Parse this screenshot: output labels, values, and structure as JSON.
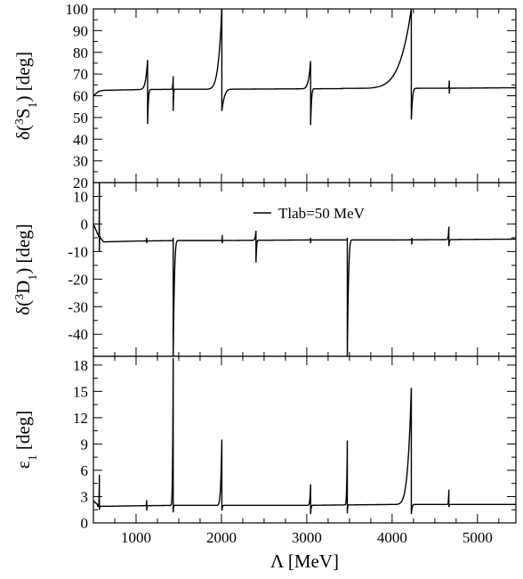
{
  "chart_data": {
    "type": "line",
    "shared_x": {
      "label": "Λ [MeV]",
      "range": [
        500,
        5450
      ],
      "major_ticks": [
        1000,
        2000,
        3000,
        4000,
        5000
      ],
      "tick_labels": [
        "1000",
        "2000",
        "3000",
        "4000",
        "5000"
      ]
    },
    "legend": {
      "label": "Tlab=50 MeV",
      "placement": "top-center of middle panel"
    },
    "panels": [
      {
        "id": "3S1",
        "ylabel": "δ(³S₁) [deg]",
        "ylabel_parts": {
          "pre": "δ(",
          "sup": "3",
          "main": "S",
          "sub": "1",
          "post": ") [deg]"
        },
        "ylim": [
          20,
          100
        ],
        "y_ticks": [
          20,
          30,
          40,
          50,
          60,
          70,
          80,
          90,
          100
        ],
        "y_tick_labels": [
          "20",
          "30",
          "40",
          "50",
          "60",
          "70",
          "80",
          "90",
          "100"
        ],
        "show_top_tick_label": true,
        "baseline_points": [
          [
            500,
            60
          ],
          [
            560,
            62
          ],
          [
            620,
            62.5
          ],
          [
            1000,
            62.8
          ],
          [
            1500,
            63
          ],
          [
            2000,
            63
          ],
          [
            3000,
            63.2
          ],
          [
            4000,
            63.4
          ],
          [
            4800,
            63.5
          ],
          [
            5450,
            63.7
          ]
        ],
        "resonances": [
          {
            "x": 1135,
            "up": 76.5,
            "down": 47,
            "rise": 140,
            "drop": 40
          },
          {
            "x": 1435,
            "up": 69,
            "down": 53,
            "rise": 30,
            "drop": 20
          },
          {
            "x": 2005,
            "up": 100,
            "down": 53,
            "rise": 250,
            "drop": 130
          },
          {
            "x": 3045,
            "up": 76,
            "down": 46.5,
            "rise": 150,
            "drop": 45
          },
          {
            "x": 4225,
            "up": 100,
            "down": 49,
            "rise": 800,
            "drop": 60
          },
          {
            "x": 4670,
            "up": 67,
            "down": 61,
            "rise": 20,
            "drop": 15
          }
        ]
      },
      {
        "id": "3D1",
        "ylabel": "δ(³D₁) [deg]",
        "ylabel_parts": {
          "pre": "δ(",
          "sup": "3",
          "main": "D",
          "sub": "1",
          "post": ") [deg]"
        },
        "ylim": [
          -48,
          15
        ],
        "y_ticks": [
          -40,
          -30,
          -20,
          -10,
          0,
          10
        ],
        "y_tick_labels": [
          "-40",
          "-30",
          "-20",
          "-10",
          "0",
          "10"
        ],
        "show_top_tick_label": false,
        "baseline_points": [
          [
            500,
            0
          ],
          [
            555,
            -4
          ],
          [
            620,
            -6.5
          ],
          [
            1000,
            -6.2
          ],
          [
            1500,
            -6
          ],
          [
            2000,
            -6
          ],
          [
            3000,
            -5.8
          ],
          [
            4000,
            -5.8
          ],
          [
            5450,
            -5.5
          ]
        ],
        "resonances": [
          {
            "x": 570,
            "up": 15,
            "down": -10,
            "rise": 10,
            "drop": 10
          },
          {
            "x": 1125,
            "up": -5,
            "down": -7,
            "rise": 10,
            "drop": 10
          },
          {
            "x": 1435,
            "up": -5,
            "down": -48,
            "rise": 20,
            "drop": 60
          },
          {
            "x": 2010,
            "up": -4,
            "down": -7,
            "rise": 10,
            "drop": 10
          },
          {
            "x": 2405,
            "up": -2.5,
            "down": -14,
            "rise": 60,
            "drop": 30
          },
          {
            "x": 3045,
            "up": -5,
            "down": -7,
            "rise": 10,
            "drop": 10
          },
          {
            "x": 3475,
            "up": -5,
            "down": -48,
            "rise": 20,
            "drop": 60
          },
          {
            "x": 4230,
            "up": -5,
            "down": -7.5,
            "rise": 10,
            "drop": 10
          },
          {
            "x": 4665,
            "up": -1,
            "down": -8,
            "rise": 40,
            "drop": 30
          }
        ]
      },
      {
        "id": "eps1",
        "ylabel": "ε₁ [deg]",
        "ylabel_parts": {
          "pre": "",
          "sup": "",
          "main": "ε",
          "sub": "1",
          "post": " [deg]"
        },
        "ylim": [
          0,
          19
        ],
        "y_ticks": [
          0,
          3,
          6,
          9,
          12,
          15,
          18
        ],
        "y_tick_labels": [
          "0",
          "3",
          "6",
          "9",
          "12",
          "15",
          "18"
        ],
        "show_top_tick_label": true,
        "baseline_points": [
          [
            500,
            2.5
          ],
          [
            570,
            1.9
          ],
          [
            700,
            1.9
          ],
          [
            1000,
            1.95
          ],
          [
            1500,
            2.0
          ],
          [
            2000,
            2.0
          ],
          [
            3000,
            2.0
          ],
          [
            4000,
            2.1
          ],
          [
            5450,
            2.1
          ]
        ],
        "resonances": [
          {
            "x": 570,
            "up": 5.5,
            "down": 1.5,
            "rise": 20,
            "drop": 20
          },
          {
            "x": 1125,
            "up": 2.6,
            "down": 1.4,
            "rise": 20,
            "drop": 15
          },
          {
            "x": 1435,
            "up": 18.8,
            "down": 1.2,
            "rise": 40,
            "drop": 15
          },
          {
            "x": 2005,
            "up": 9.5,
            "down": 1.4,
            "rise": 80,
            "drop": 30
          },
          {
            "x": 3045,
            "up": 4.4,
            "down": 1.0,
            "rise": 50,
            "drop": 25
          },
          {
            "x": 3475,
            "up": 9.4,
            "down": 1.1,
            "rise": 40,
            "drop": 15
          },
          {
            "x": 4225,
            "up": 15.4,
            "down": 1.0,
            "rise": 250,
            "drop": 40
          },
          {
            "x": 4665,
            "up": 3.8,
            "down": 1.8,
            "rise": 30,
            "drop": 20
          }
        ]
      }
    ],
    "grid": false
  }
}
